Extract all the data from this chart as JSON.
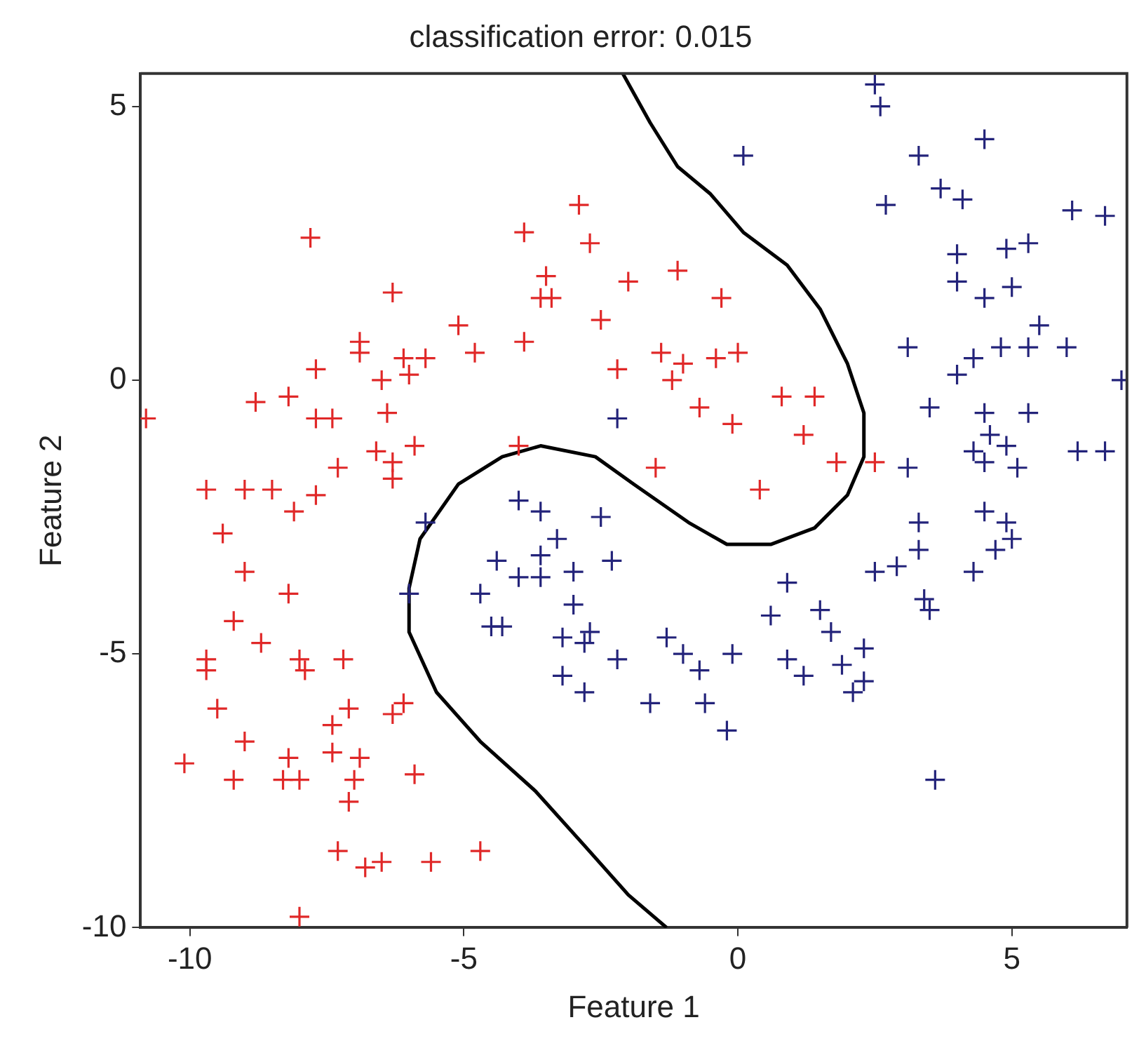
{
  "chart_data": {
    "type": "scatter",
    "title": "classification error: 0.015",
    "xlabel": "Feature 1",
    "ylabel": "Feature 2",
    "xlim": [
      -10.9,
      7.1
    ],
    "ylim": [
      -10,
      5.6
    ],
    "xticks": [
      -10,
      -5,
      0,
      5
    ],
    "yticks": [
      -10,
      -5,
      0,
      5
    ],
    "grid": false,
    "legend": false,
    "series": [
      {
        "type": "scatter",
        "marker": "cross",
        "color": "#e02828",
        "x": [
          -10.8,
          -7.8,
          -6.3,
          -6.9,
          -6.9,
          -7.7,
          -8.8,
          -8.2,
          -7.7,
          -7.4,
          -6.5,
          -6.1,
          -6.0,
          -5.7,
          -6.4,
          -6.6,
          -6.3,
          -5.9,
          -7.3,
          -5.1,
          -4.8,
          -3.9,
          -3.9,
          -2.9,
          -2.7,
          -3.5,
          -3.6,
          -3.4,
          -2.5,
          -2.2,
          -4.0,
          -9.7,
          -9.0,
          -8.5,
          -7.7,
          -6.3,
          -8.1,
          -9.4,
          -9.0,
          -8.2,
          -9.2,
          -8.7,
          -9.7,
          -9.7,
          -8.0,
          -7.9,
          -7.2,
          -9.5,
          -7.1,
          -7.4,
          -6.3,
          -6.1,
          -9.0,
          -10.1,
          -8.2,
          -7.4,
          -6.9,
          -9.2,
          -8.3,
          -8.0,
          -7.0,
          -5.9,
          -7.1,
          -7.3,
          -6.8,
          -6.5,
          -5.6,
          -4.7,
          -8.0,
          -2.0,
          -1.1,
          -0.3,
          -1.4,
          -1.0,
          -1.2,
          -0.4,
          0.0,
          -0.7,
          -0.1,
          0.8,
          1.4,
          1.2,
          -1.5,
          0.4,
          2.5,
          1.8
        ],
        "values": [
          -0.7,
          2.6,
          1.6,
          0.7,
          0.5,
          0.2,
          -0.4,
          -0.3,
          -0.7,
          -0.7,
          0.0,
          0.4,
          0.1,
          0.4,
          -0.6,
          -1.3,
          -1.5,
          -1.2,
          -1.6,
          1.0,
          0.5,
          2.7,
          0.7,
          3.2,
          2.5,
          1.9,
          1.5,
          1.5,
          1.1,
          0.2,
          -1.2,
          -2.0,
          -2.0,
          -2.0,
          -2.1,
          -1.8,
          -2.4,
          -2.8,
          -3.5,
          -3.9,
          -4.4,
          -4.8,
          -5.1,
          -5.3,
          -5.1,
          -5.3,
          -5.1,
          -6.0,
          -6.0,
          -6.3,
          -6.1,
          -5.9,
          -6.6,
          -7.0,
          -6.9,
          -6.8,
          -6.9,
          -7.3,
          -7.3,
          -7.3,
          -7.3,
          -7.2,
          -7.7,
          -8.6,
          -8.9,
          -8.8,
          -8.8,
          -8.6,
          -9.8,
          1.8,
          2.0,
          1.5,
          0.5,
          0.3,
          0.0,
          0.4,
          0.5,
          -0.5,
          -0.8,
          -0.3,
          -0.3,
          -1.0,
          -1.6,
          -2.0,
          -1.5,
          -1.5
        ]
      },
      {
        "type": "scatter",
        "marker": "cross",
        "color": "#23237a",
        "x": [
          0.1,
          2.6,
          2.5,
          4.5,
          3.3,
          3.7,
          4.1,
          2.7,
          6.1,
          6.7,
          4.0,
          4.0,
          4.9,
          5.3,
          5.0,
          4.5,
          5.5,
          3.1,
          4.8,
          5.3,
          6.0,
          4.3,
          4.0,
          7.0,
          3.5,
          4.5,
          5.3,
          -2.2,
          4.6,
          4.3,
          4.9,
          6.2,
          6.7,
          3.1,
          4.5,
          5.1,
          -5.7,
          -6.0,
          -4.0,
          -3.6,
          -2.5,
          -3.3,
          -4.4,
          -3.6,
          -4.0,
          -3.6,
          -3.0,
          -2.3,
          -4.7,
          -3.0,
          -4.5,
          -4.3,
          -3.2,
          -2.7,
          -2.8,
          -2.2,
          -3.2,
          -2.8,
          -1.6,
          -1.3,
          -1.0,
          -0.7,
          -0.1,
          -0.6,
          -0.2,
          0.9,
          0.6,
          1.5,
          1.7,
          0.9,
          1.2,
          1.9,
          2.3,
          2.3,
          2.1,
          2.5,
          2.9,
          3.3,
          3.3,
          3.4,
          3.5,
          4.3,
          4.5,
          4.9,
          4.7,
          5.0,
          3.6
        ],
        "values": [
          4.1,
          5.0,
          5.4,
          4.4,
          4.1,
          3.5,
          3.3,
          3.2,
          3.1,
          3.0,
          2.3,
          1.8,
          2.4,
          2.5,
          1.7,
          1.5,
          1.0,
          0.6,
          0.6,
          0.6,
          0.6,
          0.4,
          0.1,
          0.0,
          -0.5,
          -0.6,
          -0.6,
          -0.7,
          -1.0,
          -1.3,
          -1.2,
          -1.3,
          -1.3,
          -1.6,
          -1.5,
          -1.6,
          -2.6,
          -3.9,
          -2.2,
          -2.4,
          -2.5,
          -2.9,
          -3.3,
          -3.2,
          -3.6,
          -3.6,
          -3.5,
          -3.3,
          -3.9,
          -4.1,
          -4.5,
          -4.5,
          -4.7,
          -4.6,
          -4.8,
          -5.1,
          -5.4,
          -5.7,
          -5.9,
          -4.7,
          -5.0,
          -5.3,
          -5.0,
          -5.9,
          -6.4,
          -3.7,
          -4.3,
          -4.2,
          -4.6,
          -5.1,
          -5.4,
          -5.2,
          -4.9,
          -5.5,
          -5.7,
          -3.5,
          -3.4,
          -2.6,
          -3.1,
          -4.0,
          -4.2,
          -3.5,
          -2.4,
          -2.6,
          -3.1,
          -2.9,
          -7.3
        ]
      },
      {
        "type": "line",
        "marker": "none",
        "line_style": "solid",
        "color": "#000000",
        "x": [
          -2.1,
          -1.6,
          -1.1,
          -0.5,
          0.1,
          0.9,
          1.5,
          2.0,
          2.3,
          2.3,
          2.0,
          1.4,
          0.6,
          -0.2,
          -0.9,
          -1.9,
          -2.6,
          -3.6,
          -4.3,
          -5.1,
          -5.8,
          -6.0,
          -6.0,
          -5.5,
          -4.7,
          -3.7,
          -2.8,
          -2.0,
          -1.3
        ],
        "values": [
          5.6,
          4.7,
          3.9,
          3.4,
          2.7,
          2.1,
          1.3,
          0.3,
          -0.6,
          -1.4,
          -2.1,
          -2.7,
          -3.0,
          -3.0,
          -2.6,
          -1.9,
          -1.4,
          -1.2,
          -1.4,
          -1.9,
          -2.9,
          -3.8,
          -4.6,
          -5.7,
          -6.6,
          -7.5,
          -8.5,
          -9.4,
          -10.0
        ]
      }
    ]
  }
}
